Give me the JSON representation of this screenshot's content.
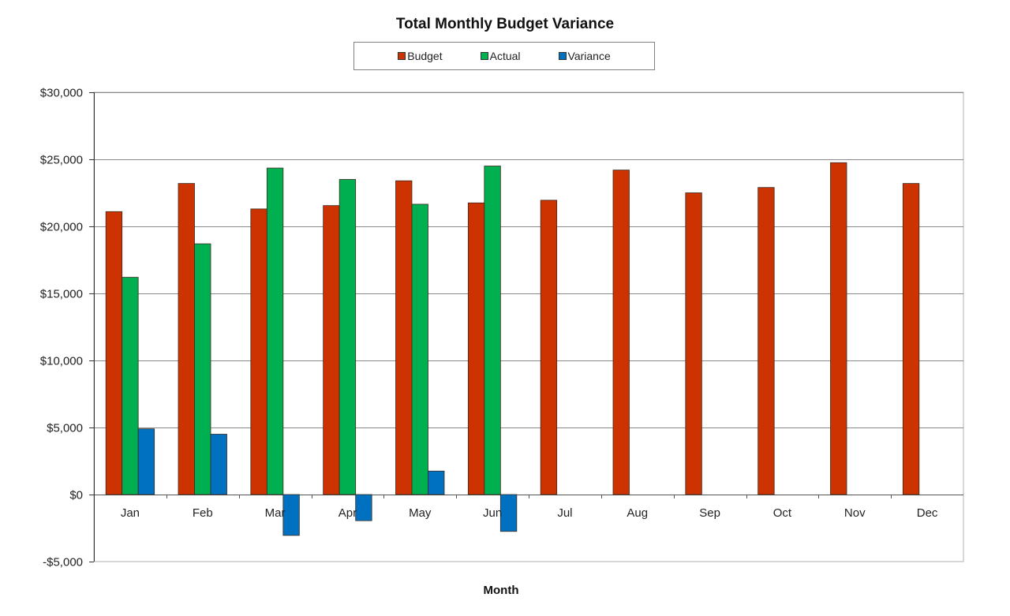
{
  "chart_data": {
    "type": "bar",
    "title": "Total Monthly Budget Variance",
    "xlabel": "Month",
    "ylabel": "",
    "ylim": [
      -5000,
      30000
    ],
    "yticks": [
      -5000,
      0,
      5000,
      10000,
      15000,
      20000,
      25000,
      30000
    ],
    "ytick_labels": [
      "-$5,000",
      "$0",
      "$5,000",
      "$10,000",
      "$15,000",
      "$20,000",
      "$25,000",
      "$30,000"
    ],
    "grid": true,
    "legend_position": "top",
    "categories": [
      "Jan",
      "Feb",
      "Mar",
      "Apr",
      "May",
      "Jun",
      "Jul",
      "Aug",
      "Sep",
      "Oct",
      "Nov",
      "Dec"
    ],
    "series": [
      {
        "name": "Budget",
        "color": "#CC3300",
        "values": [
          21100,
          23200,
          21300,
          21550,
          23400,
          21750,
          21950,
          24200,
          22500,
          22900,
          24750,
          23200
        ]
      },
      {
        "name": "Actual",
        "color": "#00B050",
        "values": [
          16200,
          18700,
          24350,
          23500,
          21650,
          24500,
          null,
          null,
          null,
          null,
          null,
          null
        ]
      },
      {
        "name": "Variance",
        "color": "#0070C0",
        "values": [
          4900,
          4500,
          -3050,
          -1950,
          1750,
          -2750,
          null,
          null,
          null,
          null,
          null,
          null
        ]
      }
    ]
  }
}
